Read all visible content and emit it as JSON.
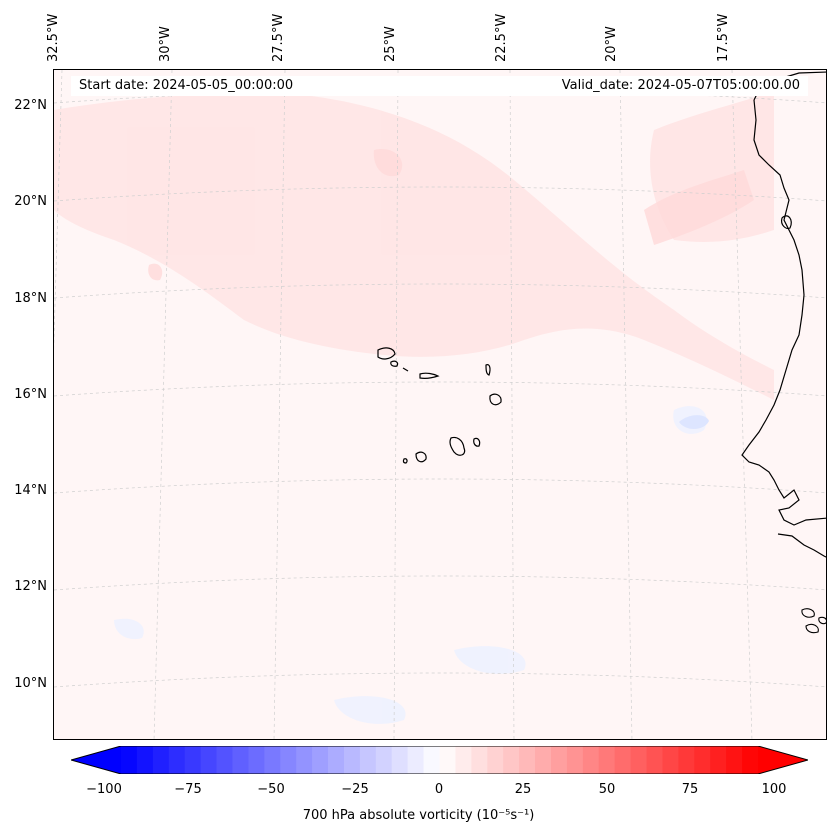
{
  "map": {
    "start_date": "Start date: 2024-05-05_00:00:00",
    "valid_date": "Valid_date: 2024-05-07T05:00:00.00",
    "lon_labels": [
      "32.5°W",
      "30°W",
      "27.5°W",
      "25°W",
      "22.5°W",
      "20°W",
      "17.5°W"
    ],
    "lat_labels": [
      "22°N",
      "20°N",
      "18°N",
      "16°N",
      "14°N",
      "12°N",
      "10°N"
    ],
    "features": [
      "Cape Verde islands",
      "West African coastline (Mauritania, Senegal, Guinea-Bissau)"
    ]
  },
  "colorbar": {
    "min": -100,
    "max": 100,
    "ticks": [
      "−100",
      "−75",
      "−50",
      "−25",
      "0",
      "25",
      "50",
      "75",
      "100"
    ],
    "label": "700 hPa absolute vorticity (10⁻⁵s⁻¹)",
    "low_color": "#0000ff",
    "mid_color": "#ffffff",
    "high_color": "#ff0000"
  }
}
